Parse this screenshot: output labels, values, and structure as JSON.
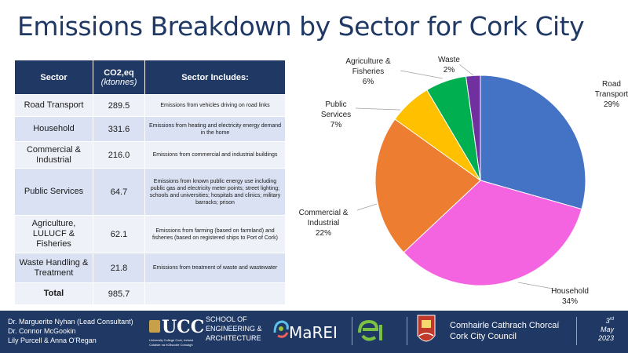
{
  "title": "Emissions Breakdown by Sector for Cork City",
  "table": {
    "headers": {
      "sector": "Sector",
      "co2": "CO2,eq",
      "co2_unit": "(ktonnes)",
      "includes": "Sector Includes:"
    },
    "rows": [
      {
        "sector": "Road Transport",
        "value": "289.5",
        "includes": "Emissions from vehicles driving on road links"
      },
      {
        "sector": "Household",
        "value": "331.6",
        "includes": "Emissions from heating and electricity energy demand in the home"
      },
      {
        "sector": "Commercial & Industrial",
        "value": "216.0",
        "includes": "Emissions from commercial and industrial buildings"
      },
      {
        "sector": "Public Services",
        "value": "64.7",
        "includes": "Emissions from known public energy use including public gas and electricity meter points; street lighting; schools and universities; hospitals and clinics; military barracks; prison"
      },
      {
        "sector": "Agriculture, LULUCF & Fisheries",
        "value": "62.1",
        "includes": "Emissions from farming (based on farmland)  and fisheries (based on registered ships to Port of Cork)"
      },
      {
        "sector": "Waste Handling & Treatment",
        "value": "21.8",
        "includes": "Emissions from treatment of waste and wastewater"
      }
    ],
    "total_label": "Total",
    "total_value": "985.7"
  },
  "chart_data": {
    "type": "pie",
    "title": "",
    "slices": [
      {
        "label": "Road Transport",
        "pct_label": "29%",
        "value": 29.4,
        "color": "#4472c4"
      },
      {
        "label": "Household",
        "pct_label": "34%",
        "value": 33.6,
        "color": "#f564e0"
      },
      {
        "label": "Commercial & Industrial",
        "pct_label": "22%",
        "value": 21.9,
        "color": "#ed7d31"
      },
      {
        "label": "Public Services",
        "pct_label": "7%",
        "value": 6.6,
        "color": "#ffc000"
      },
      {
        "label": "Agriculture & Fisheries",
        "pct_label": "6%",
        "value": 6.3,
        "color": "#00b050"
      },
      {
        "label": "Waste",
        "pct_label": "2%",
        "value": 2.2,
        "color": "#7030a0"
      }
    ]
  },
  "pie_labels": {
    "road_l1": "Road",
    "road_l2": "Transport",
    "road_pct": "29%",
    "household_l1": "Household",
    "household_pct": "34%",
    "commercial_l1": "Commercial &",
    "commercial_l2": "Industrial",
    "commercial_pct": "22%",
    "public_l1": "Public",
    "public_l2": "Services",
    "public_pct": "7%",
    "agri_l1": "Agriculture &",
    "agri_l2": "Fisheries",
    "agri_pct": "6%",
    "waste_l1": "Waste",
    "waste_pct": "2%"
  },
  "footer": {
    "authors": [
      "Dr. Marguerite Nyhan (Lead Consultant)",
      "Dr. Connor McGookin",
      "Lily Purcell & Anna O'Regan"
    ],
    "ucc_mark": "UCC",
    "ucc_sub1": "University College Cork, Ireland",
    "ucc_sub2": "Coláiste na hOllscoile Corcaigh",
    "school": [
      "SCHOOL OF",
      "ENGINEERING &",
      "ARCHITECTURE"
    ],
    "marei": "MaREI",
    "council": [
      "Comhairle Cathrach Chorcaí",
      "Cork City Council"
    ],
    "date_day": "3",
    "date_sup": "rd",
    "date_month": "May",
    "date_year": "2023"
  },
  "colors": {
    "title": "#1f3864",
    "header_bg": "#203864",
    "footer_bg": "#1f3864"
  }
}
